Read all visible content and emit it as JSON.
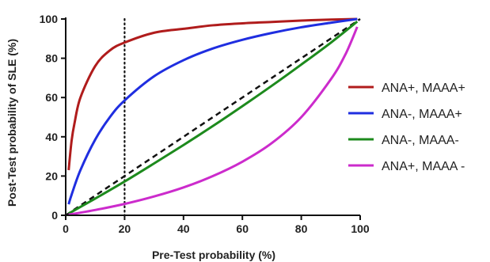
{
  "chart_data": {
    "type": "line",
    "title": "",
    "xlabel": "Pre-Test probability (%)",
    "ylabel": "Post-Test probability of SLE (%)",
    "xlim": [
      0,
      100
    ],
    "ylim": [
      0,
      100
    ],
    "x_ticks": [
      0,
      20,
      40,
      60,
      80,
      100
    ],
    "y_ticks": [
      0,
      20,
      40,
      60,
      80,
      100
    ],
    "legend_position": "right",
    "reference_lines": [
      {
        "type": "vertical",
        "x": 20,
        "style": "dotted",
        "color": "#111111"
      },
      {
        "type": "identity",
        "style": "dashed",
        "color": "#111111"
      }
    ],
    "series": [
      {
        "name": "ANA+, MAAA+",
        "color": "#b01c1c",
        "x": [
          1,
          2,
          3,
          5,
          10,
          15,
          20,
          30,
          40,
          50,
          60,
          70,
          80,
          90,
          99
        ],
        "y": [
          23,
          38,
          47,
          60,
          76,
          84,
          88,
          93,
          95,
          96.8,
          97.8,
          98.5,
          99.2,
          99.7,
          100
        ]
      },
      {
        "name": "ANA-, MAAA+",
        "color": "#1f2ee0",
        "x": [
          1,
          2,
          5,
          10,
          15,
          20,
          30,
          40,
          50,
          60,
          70,
          80,
          90,
          99
        ],
        "y": [
          5.6,
          10.5,
          23,
          38.5,
          50,
          58.5,
          70.8,
          79,
          85,
          89.4,
          92.9,
          95.8,
          98.1,
          100
        ]
      },
      {
        "name": "ANA-, MAAA-",
        "color": "#1d8a1d",
        "x": [
          1,
          10,
          20,
          30,
          40,
          50,
          60,
          70,
          80,
          90,
          99
        ],
        "y": [
          0.9,
          8.5,
          17.2,
          26.4,
          35.8,
          45.5,
          55.6,
          66,
          76.8,
          87.9,
          98.7
        ]
      },
      {
        "name": "ANA+, MAAA -",
        "color": "#cc2bcc",
        "x": [
          1,
          10,
          20,
          30,
          40,
          50,
          60,
          70,
          80,
          90,
          95,
          99
        ],
        "y": [
          0.3,
          2.7,
          5.8,
          9.6,
          14.2,
          20,
          27.3,
          36.8,
          50,
          69.2,
          82,
          96
        ]
      }
    ]
  }
}
